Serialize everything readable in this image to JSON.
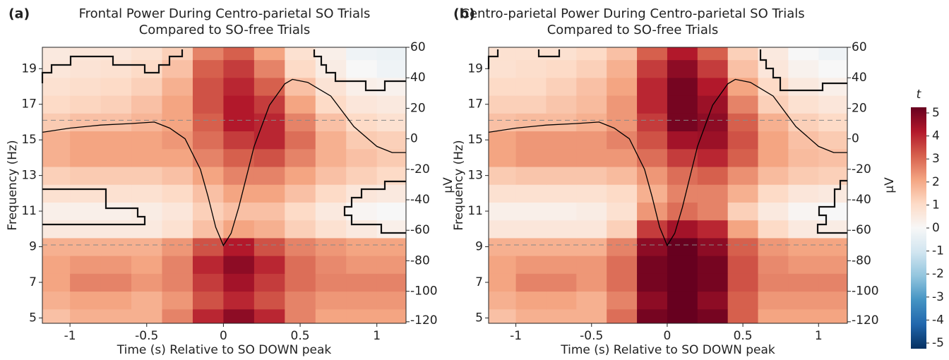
{
  "chart_data": [
    {
      "type": "heatmap",
      "panel_label": "(a)",
      "title": "Frontal Power During Centro-parietal SO Trials",
      "subtitle": "Compared to SO-free Trials",
      "xlabel": "Time (s) Relative to SO DOWN peak",
      "ylabel": "Frequency (Hz)",
      "y2label": "µV",
      "xlim": [
        -1.18,
        1.19
      ],
      "xticks": [
        -1,
        -0.5,
        0,
        0.5,
        1
      ],
      "ylim": [
        4.7,
        20.2
      ],
      "yticks": [
        5,
        7,
        9,
        11,
        13,
        15,
        17,
        19
      ],
      "y2lim": [
        -121,
        60
      ],
      "y2ticks": [
        -120,
        -100,
        -80,
        -60,
        -40,
        -20,
        0,
        20,
        40,
        60
      ],
      "reference_lines": [
        9.1,
        16.1
      ],
      "x": [
        -1.1,
        -0.9,
        -0.7,
        -0.5,
        -0.3,
        -0.1,
        0.1,
        0.3,
        0.5,
        0.7,
        0.9,
        1.1
      ],
      "y": [
        5,
        6,
        7,
        8,
        9,
        10,
        11,
        12,
        13,
        14,
        15,
        16,
        17,
        18,
        19,
        20
      ],
      "z": [
        [
          1.5,
          1.8,
          1.8,
          1.8,
          2.5,
          3.8,
          4.5,
          3.8,
          2.5,
          2.0,
          2.0,
          2.0
        ],
        [
          1.8,
          2.0,
          2.0,
          1.8,
          2.2,
          3.2,
          3.8,
          3.2,
          2.5,
          2.2,
          2.2,
          2.2
        ],
        [
          2.0,
          2.5,
          2.5,
          2.2,
          2.5,
          3.5,
          4.2,
          3.5,
          2.8,
          2.5,
          2.5,
          2.5
        ],
        [
          2.0,
          2.2,
          2.2,
          2.0,
          2.5,
          3.8,
          4.5,
          3.8,
          2.8,
          2.4,
          2.2,
          2.2
        ],
        [
          1.8,
          1.8,
          1.8,
          1.8,
          2.2,
          3.2,
          4.0,
          3.2,
          2.5,
          2.2,
          2.0,
          2.0
        ],
        [
          0.5,
          0.5,
          0.5,
          0.5,
          0.8,
          1.5,
          2.0,
          1.8,
          1.2,
          0.8,
          0.5,
          0.3
        ],
        [
          0.3,
          0.3,
          0.3,
          0.4,
          0.6,
          1.2,
          1.5,
          1.5,
          1.0,
          0.5,
          0.1,
          0
        ],
        [
          0.8,
          0.8,
          0.8,
          0.8,
          1.0,
          1.5,
          2.0,
          2.0,
          1.5,
          1.0,
          0.6,
          0.5
        ],
        [
          1.2,
          1.3,
          1.3,
          1.3,
          1.5,
          2.0,
          2.5,
          2.5,
          2.0,
          1.5,
          1.2,
          1.0
        ],
        [
          1.8,
          2.0,
          2.0,
          2.0,
          2.0,
          2.5,
          3.0,
          3.2,
          2.5,
          1.8,
          1.5,
          1.3
        ],
        [
          1.8,
          2.0,
          2.0,
          2.0,
          2.2,
          2.8,
          3.5,
          3.8,
          2.8,
          1.8,
          1.3,
          1.2
        ],
        [
          1.3,
          1.5,
          1.5,
          1.7,
          2.0,
          3.0,
          4.0,
          3.8,
          2.5,
          1.5,
          1.0,
          0.8
        ],
        [
          1.0,
          1.1,
          1.2,
          1.5,
          2.0,
          3.2,
          4.0,
          3.5,
          2.0,
          1.0,
          0.6,
          0.5
        ],
        [
          0.8,
          0.9,
          1.0,
          1.2,
          1.8,
          3.2,
          3.8,
          3.0,
          1.5,
          0.7,
          0.3,
          0.2
        ],
        [
          0.6,
          0.7,
          0.8,
          1.0,
          1.5,
          3.0,
          3.5,
          2.5,
          1.0,
          0.4,
          0,
          -0.2
        ],
        [
          0.5,
          0.6,
          0.6,
          0.8,
          1.2,
          2.5,
          3.0,
          2.0,
          0.8,
          0.3,
          -0.2,
          -0.3
        ]
      ],
      "series": [
        {
          "axis": "y2",
          "color": "#000000",
          "x": [
            -1.2,
            -1.0,
            -0.8,
            -0.6,
            -0.45,
            -0.35,
            -0.25,
            -0.15,
            -0.1,
            -0.05,
            0,
            0.05,
            0.1,
            0.2,
            0.3,
            0.4,
            0.45,
            0.55,
            0.7,
            0.85,
            1.0,
            1.1,
            1.2
          ],
          "values": [
            4,
            7,
            9,
            10,
            11,
            7,
            0,
            -20,
            -38,
            -58,
            -70,
            -62,
            -45,
            -5,
            22,
            36,
            39,
            37,
            28,
            8,
            -5,
            -9,
            -9
          ]
        }
      ]
    },
    {
      "type": "heatmap",
      "panel_label": "(b)",
      "title": "Centro-parietal Power During Centro-parietal SO Trials",
      "subtitle": "Compared to SO-free Trials",
      "xlabel": "Time (s) Relative to SO DOWN peak",
      "ylabel": "Frequency (Hz)",
      "y2label": "µV",
      "xlim": [
        -1.18,
        1.19
      ],
      "xticks": [
        -1,
        -0.5,
        0,
        0.5,
        1
      ],
      "ylim": [
        4.7,
        20.2
      ],
      "yticks": [
        5,
        7,
        9,
        11,
        13,
        15,
        17,
        19
      ],
      "y2lim": [
        -121,
        60
      ],
      "y2ticks": [
        -120,
        -100,
        -80,
        -60,
        -40,
        -20,
        0,
        20,
        40,
        60
      ],
      "reference_lines": [
        9.1,
        16.1
      ],
      "x": [
        -1.1,
        -0.9,
        -0.7,
        -0.5,
        -0.3,
        -0.1,
        0.1,
        0.3,
        0.5,
        0.7,
        0.9,
        1.1
      ],
      "y": [
        5,
        6,
        7,
        8,
        9,
        10,
        11,
        12,
        13,
        14,
        15,
        16,
        17,
        18,
        19,
        20
      ],
      "z": [
        [
          1.5,
          1.8,
          1.8,
          1.8,
          2.8,
          4.8,
          5.0,
          4.8,
          3.0,
          2.0,
          2.0,
          2.0
        ],
        [
          1.8,
          2.0,
          2.0,
          1.8,
          2.5,
          4.5,
          5.0,
          4.5,
          3.0,
          2.2,
          2.2,
          2.2
        ],
        [
          2.0,
          2.5,
          2.5,
          2.2,
          2.8,
          4.8,
          5.0,
          4.8,
          3.2,
          2.5,
          2.5,
          2.5
        ],
        [
          2.0,
          2.2,
          2.2,
          2.2,
          2.8,
          4.8,
          5.0,
          4.8,
          3.2,
          2.4,
          2.2,
          2.2
        ],
        [
          1.8,
          1.8,
          1.8,
          1.8,
          2.5,
          4.5,
          5.0,
          4.5,
          3.0,
          2.2,
          2.0,
          2.0
        ],
        [
          0.6,
          0.6,
          0.6,
          0.6,
          1.2,
          3.5,
          4.2,
          3.8,
          2.0,
          1.0,
          0.5,
          0.4
        ],
        [
          0.3,
          0.3,
          0.3,
          0.4,
          0.8,
          2.2,
          2.8,
          2.5,
          1.2,
          0.5,
          0.1,
          0
        ],
        [
          0.8,
          0.8,
          0.8,
          0.8,
          1.0,
          1.8,
          2.5,
          2.5,
          1.8,
          1.0,
          0.6,
          0.5
        ],
        [
          1.3,
          1.4,
          1.4,
          1.4,
          1.6,
          2.2,
          2.8,
          3.0,
          2.3,
          1.6,
          1.3,
          1.2
        ],
        [
          2.0,
          2.2,
          2.2,
          2.2,
          2.2,
          2.8,
          3.5,
          3.8,
          3.0,
          2.0,
          1.6,
          1.5
        ],
        [
          2.0,
          2.2,
          2.2,
          2.2,
          2.5,
          3.2,
          4.2,
          4.3,
          3.2,
          2.0,
          1.5,
          1.3
        ],
        [
          1.5,
          1.6,
          1.6,
          1.8,
          2.2,
          3.5,
          4.8,
          4.5,
          3.0,
          1.8,
          1.2,
          1.0
        ],
        [
          1.2,
          1.2,
          1.4,
          1.6,
          2.2,
          3.8,
          4.8,
          4.3,
          2.5,
          1.2,
          0.8,
          0.6
        ],
        [
          1.0,
          1.0,
          1.2,
          1.5,
          2.0,
          3.8,
          4.8,
          4.0,
          2.0,
          1.0,
          0.5,
          0.3
        ],
        [
          0.8,
          0.9,
          1.0,
          1.2,
          1.8,
          3.5,
          4.5,
          3.5,
          1.5,
          0.6,
          0.2,
          0
        ],
        [
          0.8,
          0.8,
          0.8,
          1.0,
          1.5,
          3.0,
          4.0,
          3.0,
          1.2,
          0.5,
          0.0,
          -0.2
        ]
      ],
      "series": [
        {
          "axis": "y2",
          "color": "#000000",
          "x": [
            -1.2,
            -1.0,
            -0.8,
            -0.6,
            -0.45,
            -0.35,
            -0.25,
            -0.15,
            -0.1,
            -0.05,
            0,
            0.05,
            0.1,
            0.2,
            0.3,
            0.4,
            0.45,
            0.55,
            0.7,
            0.85,
            1.0,
            1.1,
            1.2
          ],
          "values": [
            4,
            7,
            9,
            10,
            11,
            7,
            0,
            -20,
            -38,
            -58,
            -70,
            -62,
            -45,
            -5,
            22,
            36,
            39,
            37,
            28,
            8,
            -5,
            -9,
            -9
          ]
        }
      ]
    },
    {
      "type": "colorbar",
      "label": "t",
      "lim": [
        -5,
        5
      ],
      "ticks": [
        5,
        4,
        3,
        2,
        1,
        0,
        -1,
        -2,
        -3,
        -4,
        -5
      ],
      "colormap": [
        "#053061",
        "#2166ac",
        "#4393c3",
        "#92c5de",
        "#d1e5f0",
        "#f7f7f7",
        "#fddbc7",
        "#f4a582",
        "#d6604d",
        "#b2182b",
        "#67001f"
      ]
    }
  ]
}
